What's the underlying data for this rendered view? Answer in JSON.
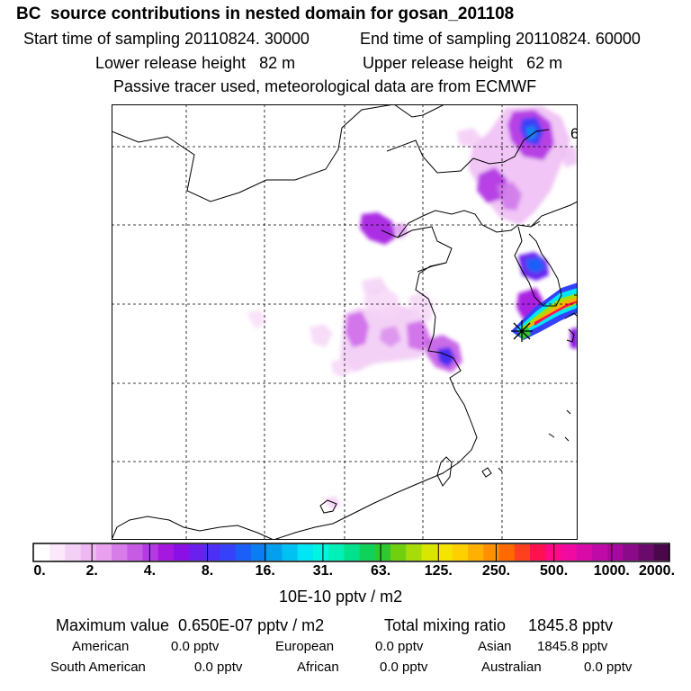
{
  "header": {
    "title": "BC  source contributions in nested domain for gosan_201108",
    "start_label": "Start time of sampling 20110824. 30000",
    "end_label": "End time of sampling 20110824. 60000",
    "lower_release": "Lower release height   82 m",
    "upper_release": "Upper release height   62 m",
    "tracer_note": "Passive tracer used, meteorological data are from ECMWF"
  },
  "map": {
    "corner_label": "6",
    "receptor": "gosan"
  },
  "legend": {
    "colors": [
      "#ffffff",
      "#fbe8fb",
      "#f5d0f6",
      "#efb8f2",
      "#e9a0ee",
      "#d77ce9",
      "#c85be6",
      "#b53ae3",
      "#a418e0",
      "#8a10e6",
      "#6a20ef",
      "#4d2ff5",
      "#3542fa",
      "#1a5ff8",
      "#0a7df2",
      "#03a0f0",
      "#00c2f2",
      "#00e6f5",
      "#00f5e0",
      "#00f0b8",
      "#00e28c",
      "#10d25a",
      "#30c830",
      "#70d010",
      "#a8dc08",
      "#d8e600",
      "#f5e400",
      "#ffd000",
      "#ffb000",
      "#ff9000",
      "#ff6a00",
      "#ff4020",
      "#ff1050",
      "#ff0a88",
      "#f00aa0",
      "#d80aa8",
      "#c00aa8",
      "#a8089c",
      "#8a0a8a",
      "#6a0a6a",
      "#4a084a"
    ],
    "ticks": [
      "0.",
      "2.",
      "4.",
      "8.",
      "16.",
      "31.",
      "63.",
      "125.",
      "250.",
      "500.",
      "1000.",
      "2000."
    ],
    "unit": "10E-10 pptv / m2"
  },
  "summary": {
    "max_value": "Maximum value  0.650E-07 pptv / m2",
    "total_mixing": "Total mixing ratio     1845.8 pptv",
    "american_label": "American",
    "american_value": "0.0 pptv",
    "european_label": "European",
    "european_value": "0.0 pptv",
    "asian_label": "Asian",
    "asian_value": "1845.8 pptv",
    "south_american_label": "South American",
    "south_american_value": "0.0 pptv",
    "african_label": "African",
    "african_value": "0.0 pptv",
    "australian_label": "Australian",
    "australian_value": "0.0 pptv"
  },
  "colors": {
    "grid": "#000000",
    "coast": "#000000"
  }
}
